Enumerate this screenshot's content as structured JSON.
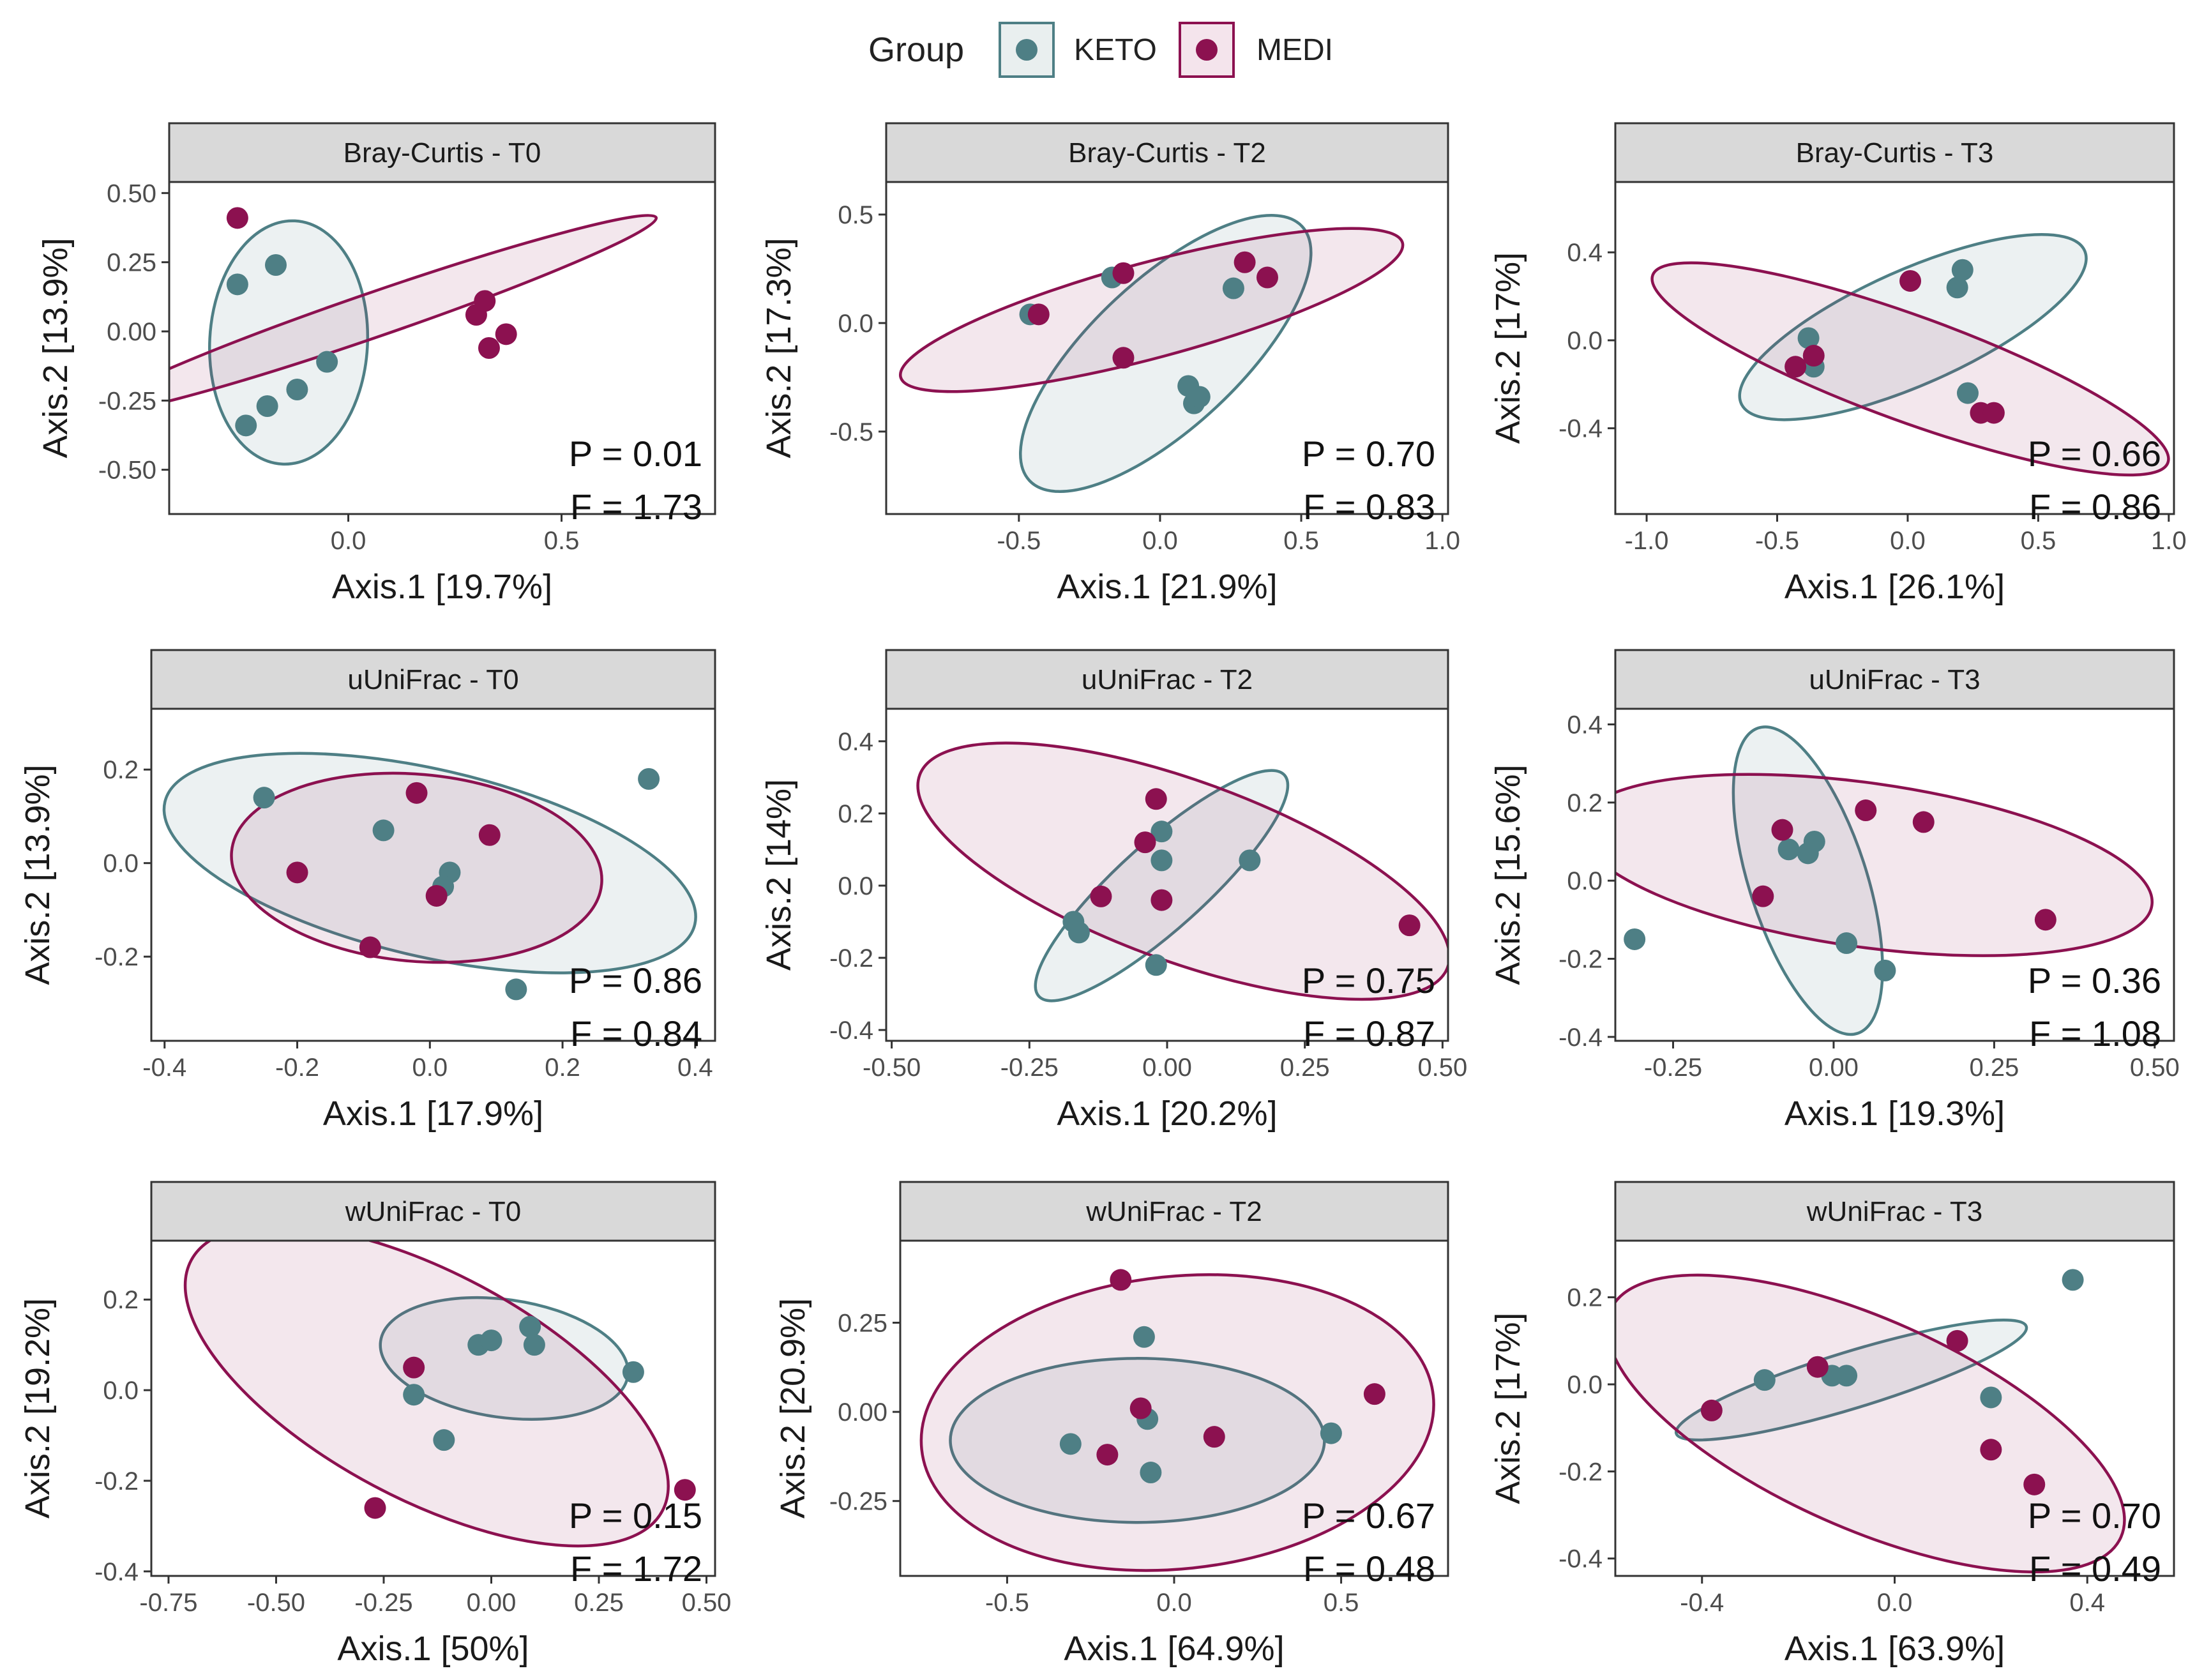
{
  "legend": {
    "title": "Group",
    "entries": [
      {
        "label": "KETO",
        "color": "#4e7f85"
      },
      {
        "label": "MEDI",
        "color": "#8c1150"
      }
    ]
  },
  "chart_data": [
    {
      "type": "scatter",
      "title": "Bray-Curtis - T0",
      "xlabel": "Axis.1   [19.7%]",
      "ylabel": "Axis.2   [13.9%]",
      "xlim": [
        -0.42,
        0.86
      ],
      "ylim": [
        -0.66,
        0.54
      ],
      "xticks": [
        0.0,
        0.5
      ],
      "xticklabels": [
        "0.0",
        "0.5"
      ],
      "yticks": [
        -0.5,
        -0.25,
        0.0,
        0.25,
        0.5
      ],
      "yticklabels": [
        "-0.50",
        "-0.25",
        "0.00",
        "0.25",
        "0.50"
      ],
      "p_text": "P = 0.01",
      "f_text": "F = 1.73",
      "series": [
        {
          "name": "KETO",
          "points": [
            [
              -0.26,
              0.17
            ],
            [
              -0.17,
              0.24
            ],
            [
              -0.24,
              -0.34
            ],
            [
              -0.19,
              -0.27
            ],
            [
              -0.12,
              -0.21
            ],
            [
              -0.05,
              -0.11
            ]
          ],
          "ellipse": {
            "cx": -0.14,
            "cy": -0.04,
            "rx": 0.185,
            "ry": 0.44,
            "angle": -3
          }
        },
        {
          "name": "MEDI",
          "points": [
            [
              -0.26,
              0.41
            ],
            [
              0.3,
              0.06
            ],
            [
              0.32,
              0.11
            ],
            [
              0.33,
              -0.06
            ],
            [
              0.37,
              -0.01
            ]
          ],
          "ellipse": {
            "cx": 0.06,
            "cy": 0.06,
            "rx": 0.7,
            "ry": 0.08,
            "angle": 19
          }
        }
      ]
    },
    {
      "type": "scatter",
      "title": "Bray-Curtis - T2",
      "xlabel": "Axis.1   [21.9%]",
      "ylabel": "Axis.2   [17.3%]",
      "xlim": [
        -0.97,
        1.02
      ],
      "ylim": [
        -0.88,
        0.65
      ],
      "xticks": [
        -0.5,
        0.0,
        0.5,
        1.0
      ],
      "xticklabels": [
        "-0.5",
        "0.0",
        "0.5",
        "1.0"
      ],
      "yticks": [
        -0.5,
        0.0,
        0.5
      ],
      "yticklabels": [
        "-0.5",
        "0.0",
        "0.5"
      ],
      "p_text": "P = 0.70",
      "f_text": "F = 0.83",
      "series": [
        {
          "name": "KETO",
          "points": [
            [
              -0.46,
              0.04
            ],
            [
              -0.17,
              0.21
            ],
            [
              0.26,
              0.16
            ],
            [
              0.1,
              -0.29
            ],
            [
              0.12,
              -0.37
            ],
            [
              0.14,
              -0.34
            ]
          ],
          "ellipse": {
            "cx": 0.02,
            "cy": -0.14,
            "rx": 0.66,
            "ry": 0.34,
            "angle": 43
          }
        },
        {
          "name": "MEDI",
          "points": [
            [
              -0.43,
              0.04
            ],
            [
              -0.13,
              0.23
            ],
            [
              -0.13,
              -0.16
            ],
            [
              0.3,
              0.28
            ],
            [
              0.38,
              0.21
            ]
          ],
          "ellipse": {
            "cx": -0.03,
            "cy": 0.06,
            "rx": 0.92,
            "ry": 0.22,
            "angle": 15
          }
        }
      ]
    },
    {
      "type": "scatter",
      "title": "Bray-Curtis - T3",
      "xlabel": "Axis.1   [26.1%]",
      "ylabel": "Axis.2   [17%]",
      "xlim": [
        -1.12,
        1.02
      ],
      "ylim": [
        -0.79,
        0.72
      ],
      "xticks": [
        -1.0,
        -0.5,
        0.0,
        0.5,
        1.0
      ],
      "xticklabels": [
        "-1.0",
        "-0.5",
        "0.0",
        "0.5",
        "1.0"
      ],
      "yticks": [
        -0.4,
        0.0,
        0.4
      ],
      "yticklabels": [
        "-0.4",
        "0.0",
        "0.4"
      ],
      "p_text": "P = 0.66",
      "f_text": "F = 0.86",
      "series": [
        {
          "name": "KETO",
          "points": [
            [
              -0.38,
              0.01
            ],
            [
              -0.36,
              -0.12
            ],
            [
              0.19,
              0.24
            ],
            [
              0.21,
              0.32
            ],
            [
              0.23,
              -0.24
            ]
          ],
          "ellipse": {
            "cx": 0.02,
            "cy": 0.06,
            "rx": 0.72,
            "ry": 0.26,
            "angle": 24
          }
        },
        {
          "name": "MEDI",
          "points": [
            [
              -0.43,
              -0.12
            ],
            [
              -0.36,
              -0.07
            ],
            [
              0.01,
              0.27
            ],
            [
              0.28,
              -0.33
            ],
            [
              0.33,
              -0.33
            ]
          ],
          "ellipse": {
            "cx": 0.01,
            "cy": -0.13,
            "rx": 1.05,
            "ry": 0.24,
            "angle": -20
          }
        }
      ]
    },
    {
      "type": "scatter",
      "title": "uUniFrac - T0",
      "xlabel": "Axis.1   [17.9%]",
      "ylabel": "Axis.2   [13.9%]",
      "xlim": [
        -0.42,
        0.43
      ],
      "ylim": [
        -0.38,
        0.33
      ],
      "xticks": [
        -0.4,
        -0.2,
        0.0,
        0.2,
        0.4
      ],
      "xticklabels": [
        "-0.4",
        "-0.2",
        "0.0",
        "0.2",
        "0.4"
      ],
      "yticks": [
        -0.2,
        0.0,
        0.2
      ],
      "yticklabels": [
        "-0.2",
        "0.0",
        "0.2"
      ],
      "p_text": "P = 0.86",
      "f_text": "F = 0.84",
      "series": [
        {
          "name": "KETO",
          "points": [
            [
              -0.25,
              0.14
            ],
            [
              -0.07,
              0.07
            ],
            [
              0.03,
              -0.02
            ],
            [
              0.02,
              -0.05
            ],
            [
              0.33,
              0.18
            ],
            [
              0.13,
              -0.27
            ]
          ],
          "ellipse": {
            "cx": 0.0,
            "cy": 0.0,
            "rx": 0.41,
            "ry": 0.2,
            "angle": -13
          }
        },
        {
          "name": "MEDI",
          "points": [
            [
              -0.2,
              -0.02
            ],
            [
              -0.02,
              0.15
            ],
            [
              0.01,
              -0.07
            ],
            [
              0.09,
              0.06
            ],
            [
              -0.09,
              -0.18
            ]
          ],
          "ellipse": {
            "cx": -0.02,
            "cy": -0.01,
            "rx": 0.28,
            "ry": 0.2,
            "angle": -5
          }
        }
      ]
    },
    {
      "type": "scatter",
      "title": "uUniFrac - T2",
      "xlabel": "Axis.1   [20.2%]",
      "ylabel": "Axis.2   [14%]",
      "xlim": [
        -0.51,
        0.51
      ],
      "ylim": [
        -0.43,
        0.49
      ],
      "xticks": [
        -0.5,
        -0.25,
        0.0,
        0.25,
        0.5
      ],
      "xticklabels": [
        "-0.50",
        "-0.25",
        "0.00",
        "0.25",
        "0.50"
      ],
      "yticks": [
        -0.4,
        -0.2,
        0.0,
        0.2,
        0.4
      ],
      "yticklabels": [
        "-0.4",
        "-0.2",
        "0.0",
        "0.2",
        "0.4"
      ],
      "p_text": "P = 0.75",
      "f_text": "F = 0.87",
      "series": [
        {
          "name": "KETO",
          "points": [
            [
              -0.17,
              -0.1
            ],
            [
              -0.16,
              -0.13
            ],
            [
              -0.01,
              0.15
            ],
            [
              -0.01,
              0.07
            ],
            [
              0.15,
              0.07
            ],
            [
              -0.02,
              -0.22
            ]
          ],
          "ellipse": {
            "cx": -0.01,
            "cy": 0.0,
            "rx": 0.3,
            "ry": 0.12,
            "angle": 42
          }
        },
        {
          "name": "MEDI",
          "points": [
            [
              -0.12,
              -0.03
            ],
            [
              -0.04,
              0.12
            ],
            [
              -0.02,
              0.24
            ],
            [
              -0.01,
              -0.04
            ],
            [
              0.44,
              -0.11
            ]
          ],
          "ellipse": {
            "cx": 0.03,
            "cy": 0.04,
            "rx": 0.51,
            "ry": 0.25,
            "angle": -20
          }
        }
      ]
    },
    {
      "type": "scatter",
      "title": "uUniFrac - T3",
      "xlabel": "Axis.1   [19.3%]",
      "ylabel": "Axis.2   [15.6%]",
      "xlim": [
        -0.34,
        0.53
      ],
      "ylim": [
        -0.41,
        0.44
      ],
      "xticks": [
        -0.25,
        0.0,
        0.25,
        0.5
      ],
      "xticklabels": [
        "-0.25",
        "0.00",
        "0.25",
        "0.50"
      ],
      "yticks": [
        -0.4,
        -0.2,
        0.0,
        0.2,
        0.4
      ],
      "yticklabels": [
        "-0.4",
        "-0.2",
        "0.0",
        "0.2",
        "0.4"
      ],
      "p_text": "P = 0.36",
      "f_text": "F = 1.08",
      "series": [
        {
          "name": "KETO",
          "points": [
            [
              -0.31,
              -0.15
            ],
            [
              -0.07,
              0.08
            ],
            [
              -0.03,
              0.1
            ],
            [
              -0.04,
              0.07
            ],
            [
              0.02,
              -0.16
            ],
            [
              0.08,
              -0.23
            ]
          ],
          "ellipse": {
            "cx": -0.04,
            "cy": 0.0,
            "rx": 0.25,
            "ry": 0.15,
            "angle": -72
          }
        },
        {
          "name": "MEDI",
          "points": [
            [
              -0.08,
              0.13
            ],
            [
              -0.11,
              -0.04
            ],
            [
              0.05,
              0.18
            ],
            [
              0.14,
              0.15
            ],
            [
              0.33,
              -0.1
            ]
          ],
          "ellipse": {
            "cx": 0.05,
            "cy": 0.04,
            "rx": 0.45,
            "ry": 0.21,
            "angle": -8
          }
        }
      ]
    },
    {
      "type": "scatter",
      "title": "wUniFrac - T0",
      "xlabel": "Axis.1   [50%]",
      "ylabel": "Axis.2   [19.2%]",
      "xlim": [
        -0.79,
        0.52
      ],
      "ylim": [
        -0.41,
        0.33
      ],
      "xticks": [
        -0.75,
        -0.5,
        -0.25,
        0.0,
        0.25,
        0.5
      ],
      "xticklabels": [
        "-0.75",
        "-0.50",
        "-0.25",
        "0.00",
        "0.25",
        "0.50"
      ],
      "yticks": [
        -0.4,
        -0.2,
        0.0,
        0.2
      ],
      "yticklabels": [
        "-0.4",
        "-0.2",
        "0.0",
        "0.2"
      ],
      "p_text": "P = 0.15",
      "f_text": "F = 1.72",
      "series": [
        {
          "name": "KETO",
          "points": [
            [
              -0.03,
              0.1
            ],
            [
              0.0,
              0.11
            ],
            [
              0.09,
              0.14
            ],
            [
              0.1,
              0.1
            ],
            [
              -0.11,
              -0.11
            ],
            [
              -0.18,
              -0.01
            ],
            [
              0.33,
              0.04
            ]
          ],
          "ellipse": {
            "cx": 0.03,
            "cy": 0.07,
            "rx": 0.29,
            "ry": 0.13,
            "angle": -8
          }
        },
        {
          "name": "MEDI",
          "points": [
            [
              -0.18,
              0.05
            ],
            [
              -0.27,
              -0.26
            ],
            [
              0.45,
              -0.22
            ]
          ],
          "ellipse": {
            "cx": -0.15,
            "cy": 0.01,
            "rx": 0.62,
            "ry": 0.25,
            "angle": -28
          }
        }
      ]
    },
    {
      "type": "scatter",
      "title": "wUniFrac - T2",
      "xlabel": "Axis.1   [64.9%]",
      "ylabel": "Axis.2   [20.9%]",
      "xlim": [
        -0.82,
        0.82
      ],
      "ylim": [
        -0.46,
        0.48
      ],
      "xticks": [
        -0.5,
        0.0,
        0.5
      ],
      "xticklabels": [
        "-0.5",
        "0.0",
        "0.5"
      ],
      "yticks": [
        -0.25,
        0.0,
        0.25
      ],
      "yticklabels": [
        "-0.25",
        "0.00",
        "0.25"
      ],
      "p_text": "P = 0.67",
      "f_text": "F = 0.48",
      "series": [
        {
          "name": "KETO",
          "points": [
            [
              -0.09,
              0.21
            ],
            [
              -0.31,
              -0.09
            ],
            [
              -0.08,
              -0.02
            ],
            [
              -0.07,
              -0.17
            ],
            [
              0.47,
              -0.06
            ]
          ],
          "ellipse": {
            "cx": -0.11,
            "cy": -0.08,
            "rx": 0.56,
            "ry": 0.23,
            "angle": 0
          }
        },
        {
          "name": "MEDI",
          "points": [
            [
              -0.16,
              0.37
            ],
            [
              -0.1,
              0.01
            ],
            [
              -0.2,
              -0.12
            ],
            [
              0.12,
              -0.07
            ],
            [
              0.6,
              0.05
            ]
          ],
          "ellipse": {
            "cx": 0.01,
            "cy": -0.03,
            "rx": 0.77,
            "ry": 0.41,
            "angle": 6
          }
        }
      ]
    },
    {
      "type": "scatter",
      "title": "wUniFrac - T3",
      "xlabel": "Axis.1   [63.9%]",
      "ylabel": "Axis.2   [17%]",
      "xlim": [
        -0.58,
        0.58
      ],
      "ylim": [
        -0.44,
        0.33
      ],
      "xticks": [
        -0.4,
        0.0,
        0.4
      ],
      "xticklabels": [
        "-0.4",
        "0.0",
        "0.4"
      ],
      "yticks": [
        -0.4,
        -0.2,
        0.0,
        0.2
      ],
      "yticklabels": [
        "-0.4",
        "-0.2",
        "0.0",
        "0.2"
      ],
      "p_text": "P = 0.70",
      "f_text": "F = 0.49",
      "series": [
        {
          "name": "KETO",
          "points": [
            [
              -0.27,
              0.01
            ],
            [
              -0.13,
              0.02
            ],
            [
              -0.1,
              0.02
            ],
            [
              0.2,
              -0.03
            ],
            [
              0.37,
              0.24
            ]
          ],
          "ellipse": {
            "cx": -0.09,
            "cy": 0.01,
            "rx": 0.38,
            "ry": 0.065,
            "angle": 17
          }
        },
        {
          "name": "MEDI",
          "points": [
            [
              -0.38,
              -0.06
            ],
            [
              -0.16,
              0.04
            ],
            [
              0.13,
              0.1
            ],
            [
              0.2,
              -0.15
            ],
            [
              0.29,
              -0.23
            ]
          ],
          "ellipse": {
            "cx": -0.06,
            "cy": -0.09,
            "rx": 0.58,
            "ry": 0.24,
            "angle": -24
          }
        }
      ]
    }
  ]
}
